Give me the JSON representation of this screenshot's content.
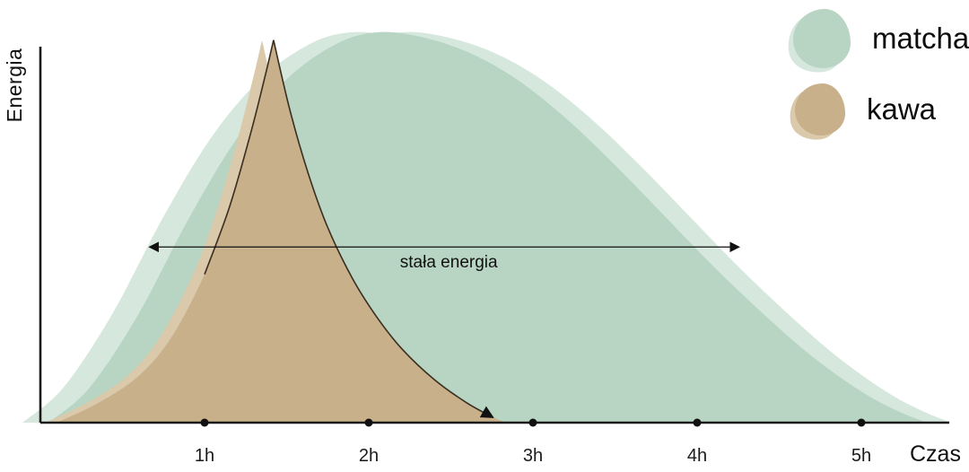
{
  "axis": {
    "y_label": "Energia",
    "x_label": "Czas"
  },
  "chart_data": {
    "type": "area",
    "title": "",
    "xlabel": "Czas",
    "ylabel": "Energia",
    "x_unit": "h",
    "x_ticks": [
      1,
      2,
      3,
      4,
      5
    ],
    "x_tick_labels": [
      "1h",
      "2h",
      "3h",
      "4h",
      "5h"
    ],
    "xlim": [
      0,
      5.6
    ],
    "ylim": [
      0,
      100
    ],
    "grid": false,
    "legend_position": "top-right",
    "series": [
      {
        "name": "matcha",
        "color": "#b8d5c3",
        "light_color": "#d6e8dd",
        "x": [
          0.05,
          0.3,
          0.6,
          0.9,
          1.2,
          1.5,
          1.8,
          2.05,
          2.3,
          2.6,
          2.9,
          3.2,
          3.5,
          3.8,
          4.1,
          4.4,
          4.7,
          5.0,
          5.22,
          5.4
        ],
        "y": [
          0,
          9,
          28,
          52,
          73,
          88,
          97,
          100,
          99,
          95,
          88,
          78,
          66,
          53,
          40,
          28,
          17,
          8,
          3,
          0
        ]
      },
      {
        "name": "kawa",
        "color": "#c8b08b",
        "light_color": "#dac9aa",
        "x": [
          0.1,
          0.35,
          0.6,
          0.8,
          1.0,
          1.15,
          1.28,
          1.37,
          1.42,
          1.52,
          1.63,
          1.75,
          1.9,
          2.05,
          2.2,
          2.4,
          2.6,
          2.75,
          2.84
        ],
        "y": [
          0,
          5,
          12,
          22,
          38,
          55,
          74,
          89,
          98,
          80,
          64,
          50,
          37,
          27,
          19,
          11,
          5,
          1.5,
          0
        ],
        "peak_index": 8
      }
    ],
    "annotations": [
      {
        "type": "double_arrow",
        "label": "stała energia",
        "x_from": 0.67,
        "x_to": 4.25,
        "y": 45
      }
    ]
  },
  "colors": {
    "axis": "#1a1a1a",
    "arrow": "#111111",
    "decay_stroke": "#3a2e20"
  }
}
